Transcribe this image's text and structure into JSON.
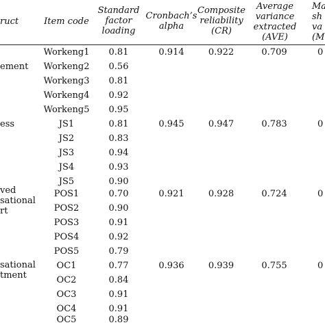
{
  "headers": [
    "ruct",
    "Item code",
    "Standard\nfactor\nloading",
    "Cronbach’s\nalpha",
    "Composite\nreliability\n(CR)",
    "Average\nvariance\nextracted\n(AVE)",
    "Ma\nsh\nva\n(M"
  ],
  "rows": [
    {
      "item": "Workeng1",
      "loading": "0.81"
    },
    {
      "item": "Workeng2",
      "loading": "0.56"
    },
    {
      "item": "Workeng3",
      "loading": "0.81"
    },
    {
      "item": "Workeng4",
      "loading": "0.92"
    },
    {
      "item": "Workeng5",
      "loading": "0.95"
    },
    {
      "item": "JS1",
      "loading": "0.81"
    },
    {
      "item": "JS2",
      "loading": "0.83"
    },
    {
      "item": "JS3",
      "loading": "0.94"
    },
    {
      "item": "JS4",
      "loading": "0.93"
    },
    {
      "item": "JS5",
      "loading": "0.90"
    },
    {
      "item": "POS1",
      "loading": "0.70"
    },
    {
      "item": "POS2",
      "loading": "0.90"
    },
    {
      "item": "POS3",
      "loading": "0.91"
    },
    {
      "item": "POS4",
      "loading": "0.92"
    },
    {
      "item": "POS5",
      "loading": "0.79"
    },
    {
      "item": "OC1",
      "loading": "0.77"
    },
    {
      "item": "OC2",
      "loading": "0.84"
    },
    {
      "item": "OC3",
      "loading": "0.91"
    },
    {
      "item": "OC4",
      "loading": "0.91"
    },
    {
      "item": "OC5",
      "loading": "0.89"
    }
  ],
  "groups": [
    {
      "construct": "ement",
      "alpha": "0.914",
      "cr": "0.922",
      "ave": "0.709",
      "msv": "0"
    },
    {
      "construct": "ess",
      "alpha": "0.945",
      "cr": "0.947",
      "ave": "0.783",
      "msv": "0"
    },
    {
      "construct": "ved\nsational\nrt",
      "alpha": "0.921",
      "cr": "0.928",
      "ave": "0.724",
      "msv": "0"
    },
    {
      "construct": "sational\ntment",
      "alpha": "0.936",
      "cr": "0.939",
      "ave": "0.755",
      "msv": "0"
    }
  ]
}
